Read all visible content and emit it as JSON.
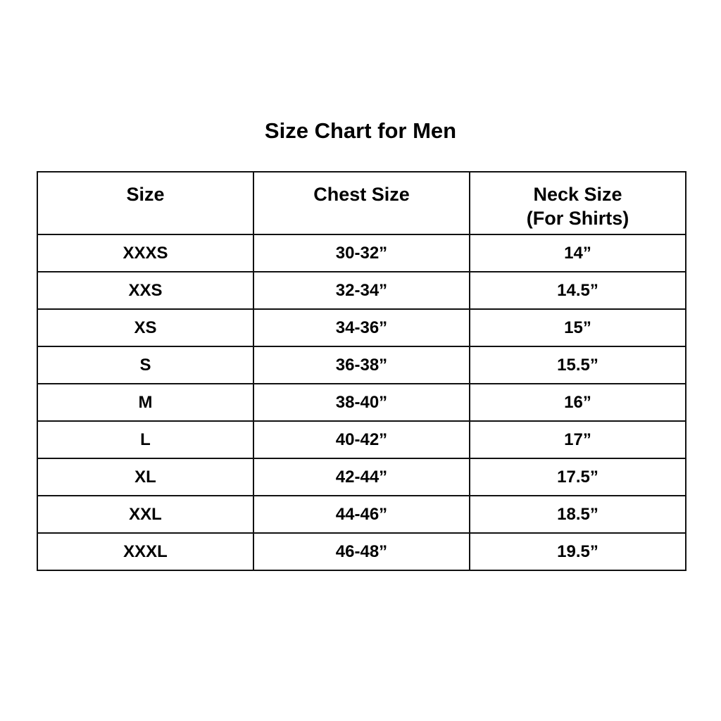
{
  "title": "Size Chart for Men",
  "table": {
    "headers": [
      "Size",
      "Chest Size",
      "Neck Size",
      "(For Shirts)"
    ],
    "rows": [
      [
        "XXXS",
        "30-32”",
        "14”"
      ],
      [
        "XXS",
        "32-34”",
        "14.5”"
      ],
      [
        "XS",
        "34-36”",
        "15”"
      ],
      [
        "S",
        "36-38”",
        "15.5”"
      ],
      [
        "M",
        "38-40”",
        "16”"
      ],
      [
        "L",
        "40-42”",
        "17”"
      ],
      [
        "XL",
        "42-44”",
        "17.5”"
      ],
      [
        "XXL",
        "44-46”",
        "18.5”"
      ],
      [
        "XXXL",
        "46-48”",
        "19.5”"
      ]
    ]
  }
}
